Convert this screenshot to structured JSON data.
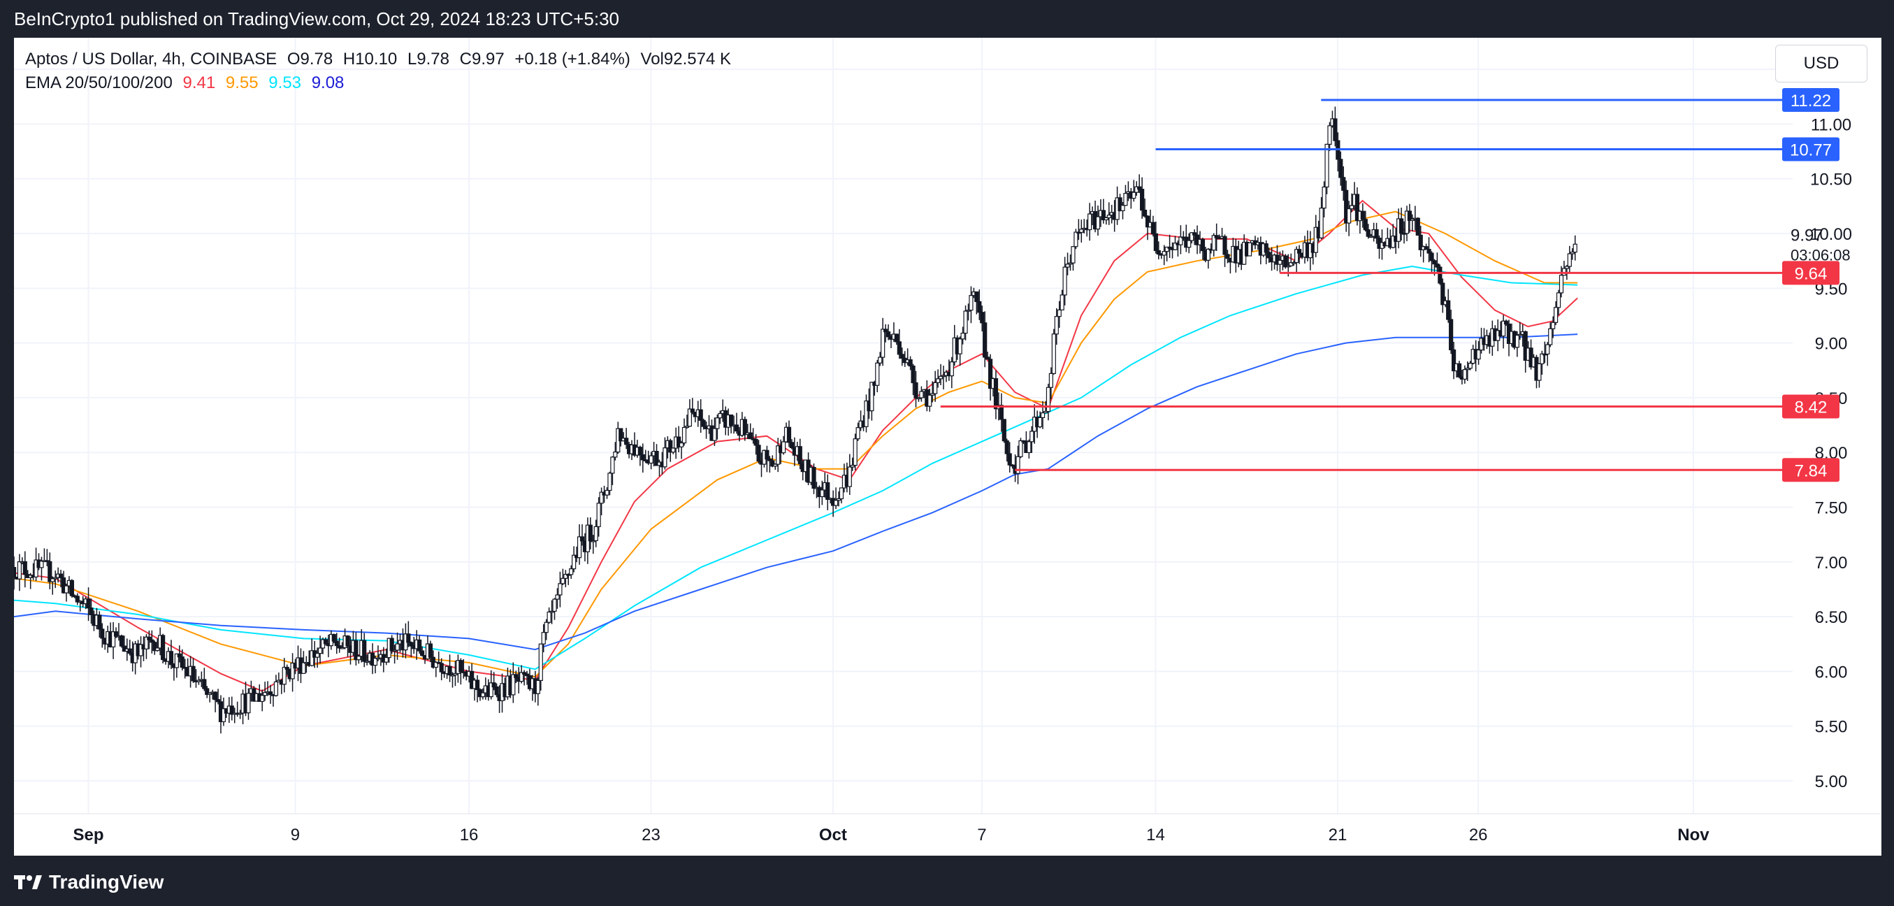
{
  "header": {
    "publisher": "BeInCrypto1 published on TradingView.com, Oct 29, 2024 18:23 UTC+5:30"
  },
  "legend": {
    "symbol": "Aptos / US Dollar, 4h, COINBASE",
    "open": "O9.78",
    "high": "H10.10",
    "low": "L9.78",
    "close": "C9.97",
    "change": "+0.18 (+1.84%)",
    "volume": "Vol92.574 K",
    "ema_label": "EMA 20/50/100/200",
    "ema20": "9.41",
    "ema50": "9.55",
    "ema100": "9.53",
    "ema200": "9.08"
  },
  "toolbar": {
    "currency_label": "USD"
  },
  "footer": {
    "brand": "TradingView"
  },
  "colors": {
    "ema20": "#f23645",
    "ema50": "#ff9800",
    "ema100": "#00e5ff",
    "ema200": "#2962ff",
    "resistance": "#2962ff",
    "support": "#f23645",
    "candle": "#131722"
  },
  "chart_data": {
    "type": "candlestick",
    "title": "Aptos / US Dollar, 4h, COINBASE",
    "x_ticks": [
      {
        "label": "Sep",
        "t": 4,
        "bold": true
      },
      {
        "label": "9",
        "t": 29,
        "bold": false
      },
      {
        "label": "16",
        "t": 50,
        "bold": false
      },
      {
        "label": "23",
        "t": 72,
        "bold": false
      },
      {
        "label": "Oct",
        "t": 94,
        "bold": true
      },
      {
        "label": "7",
        "t": 112,
        "bold": false
      },
      {
        "label": "14",
        "t": 133,
        "bold": false
      },
      {
        "label": "21",
        "t": 155,
        "bold": false
      },
      {
        "label": "26",
        "t": 172,
        "bold": false
      },
      {
        "label": "Nov",
        "t": 198,
        "bold": true
      }
    ],
    "x_range": [
      -5,
      210
    ],
    "y_ticks": [
      5.0,
      5.5,
      6.0,
      6.5,
      7.0,
      7.5,
      8.0,
      8.5,
      9.0,
      9.5,
      10.0,
      10.5,
      11.0,
      11.5
    ],
    "y_tick_labels": [
      "5.00",
      "5.50",
      "6.00",
      "6.50",
      "7.00",
      "7.50",
      "8.00",
      "8.50",
      "9.00",
      "9.50",
      "10.00",
      "10.50",
      "11.00",
      "11.50"
    ],
    "ylim": [
      4.7,
      11.75
    ],
    "price_label": {
      "value": 9.97,
      "text": "9.97",
      "countdown": "03:06:08"
    },
    "levels": [
      {
        "kind": "resistance",
        "value": 11.22,
        "label": "11.22",
        "t_start": 153
      },
      {
        "kind": "resistance",
        "value": 10.77,
        "label": "10.77",
        "t_start": 133
      },
      {
        "kind": "support",
        "value": 9.64,
        "label": "9.64",
        "t_start": 148
      },
      {
        "kind": "support",
        "value": 8.42,
        "label": "8.42",
        "t_start": 107
      },
      {
        "kind": "support",
        "value": 7.84,
        "label": "7.84",
        "t_start": 116
      }
    ],
    "closes": [
      [
        -5,
        6.95
      ],
      [
        0,
        6.9
      ],
      [
        2,
        6.7
      ],
      [
        4,
        6.55
      ],
      [
        6,
        6.35
      ],
      [
        8,
        6.25
      ],
      [
        10,
        6.15
      ],
      [
        12,
        6.3
      ],
      [
        14,
        6.1
      ],
      [
        16,
        6.0
      ],
      [
        18,
        5.8
      ],
      [
        20,
        5.65
      ],
      [
        22,
        5.7
      ],
      [
        24,
        5.75
      ],
      [
        25,
        5.8
      ],
      [
        26,
        5.85
      ],
      [
        28,
        6.0
      ],
      [
        30,
        6.1
      ],
      [
        32,
        6.2
      ],
      [
        34,
        6.25
      ],
      [
        36,
        6.2
      ],
      [
        38,
        6.15
      ],
      [
        40,
        6.2
      ],
      [
        42,
        6.25
      ],
      [
        44,
        6.2
      ],
      [
        46,
        6.1
      ],
      [
        48,
        6.05
      ],
      [
        50,
        5.9
      ],
      [
        52,
        5.8
      ],
      [
        54,
        5.85
      ],
      [
        56,
        5.9
      ],
      [
        58,
        5.85
      ],
      [
        59,
        6.3
      ],
      [
        61,
        6.7
      ],
      [
        63,
        7.1
      ],
      [
        65,
        7.3
      ],
      [
        67,
        7.8
      ],
      [
        68,
        8.2
      ],
      [
        69,
        8.1
      ],
      [
        71,
        8.0
      ],
      [
        73,
        7.95
      ],
      [
        75,
        8.1
      ],
      [
        77,
        8.35
      ],
      [
        79,
        8.2
      ],
      [
        81,
        8.3
      ],
      [
        83,
        8.2
      ],
      [
        85,
        7.95
      ],
      [
        87,
        7.9
      ],
      [
        88,
        8.2
      ],
      [
        90,
        7.9
      ],
      [
        92,
        7.7
      ],
      [
        94,
        7.6
      ],
      [
        96,
        7.8
      ],
      [
        97,
        8.2
      ],
      [
        99,
        8.6
      ],
      [
        100,
        9.1
      ],
      [
        102,
        9.0
      ],
      [
        104,
        8.6
      ],
      [
        106,
        8.5
      ],
      [
        108,
        8.8
      ],
      [
        110,
        9.2
      ],
      [
        111,
        9.4
      ],
      [
        112,
        9.1
      ],
      [
        113,
        8.7
      ],
      [
        115,
        8.0
      ],
      [
        116,
        7.9
      ],
      [
        118,
        8.2
      ],
      [
        120,
        8.5
      ],
      [
        121,
        9.2
      ],
      [
        122,
        9.6
      ],
      [
        123,
        9.9
      ],
      [
        125,
        10.1
      ],
      [
        127,
        10.2
      ],
      [
        129,
        10.25
      ],
      [
        131,
        10.4
      ],
      [
        132,
        10.1
      ],
      [
        133,
        9.9
      ],
      [
        135,
        9.9
      ],
      [
        137,
        9.95
      ],
      [
        139,
        9.85
      ],
      [
        141,
        9.9
      ],
      [
        143,
        9.8
      ],
      [
        145,
        9.85
      ],
      [
        147,
        9.8
      ],
      [
        148,
        9.7
      ],
      [
        150,
        9.8
      ],
      [
        152,
        9.9
      ],
      [
        153,
        10.1
      ],
      [
        154,
        11.1
      ],
      [
        155,
        10.8
      ],
      [
        156,
        10.2
      ],
      [
        157,
        10.3
      ],
      [
        158,
        10.1
      ],
      [
        160,
        9.85
      ],
      [
        162,
        10.0
      ],
      [
        164,
        10.2
      ],
      [
        165,
        9.9
      ],
      [
        167,
        9.7
      ],
      [
        168,
        9.3
      ],
      [
        169,
        8.8
      ],
      [
        170,
        8.6
      ],
      [
        171,
        8.9
      ],
      [
        173,
        9.0
      ],
      [
        175,
        9.1
      ],
      [
        177,
        9.05
      ],
      [
        178,
        8.9
      ],
      [
        179,
        8.75
      ],
      [
        180,
        8.9
      ],
      [
        181,
        9.2
      ],
      [
        182,
        9.6
      ],
      [
        183,
        9.8
      ],
      [
        184,
        9.97
      ]
    ],
    "ema_series": [
      {
        "key": "ema20",
        "points": [
          [
            -5,
            6.9
          ],
          [
            0,
            6.85
          ],
          [
            10,
            6.4
          ],
          [
            20,
            5.98
          ],
          [
            25,
            5.82
          ],
          [
            30,
            6.05
          ],
          [
            40,
            6.2
          ],
          [
            50,
            6.0
          ],
          [
            58,
            5.92
          ],
          [
            62,
            6.4
          ],
          [
            66,
            7.0
          ],
          [
            70,
            7.55
          ],
          [
            74,
            7.85
          ],
          [
            80,
            8.1
          ],
          [
            86,
            8.15
          ],
          [
            92,
            7.85
          ],
          [
            96,
            7.75
          ],
          [
            100,
            8.2
          ],
          [
            104,
            8.5
          ],
          [
            108,
            8.75
          ],
          [
            112,
            8.9
          ],
          [
            116,
            8.55
          ],
          [
            120,
            8.4
          ],
          [
            124,
            9.25
          ],
          [
            128,
            9.75
          ],
          [
            132,
            10.0
          ],
          [
            138,
            9.95
          ],
          [
            144,
            9.95
          ],
          [
            150,
            9.75
          ],
          [
            154,
            10.0
          ],
          [
            158,
            10.3
          ],
          [
            162,
            10.05
          ],
          [
            166,
            10.0
          ],
          [
            170,
            9.6
          ],
          [
            174,
            9.3
          ],
          [
            178,
            9.15
          ],
          [
            181,
            9.2
          ],
          [
            184,
            9.41
          ]
        ]
      },
      {
        "key": "ema50",
        "points": [
          [
            -5,
            6.85
          ],
          [
            0,
            6.8
          ],
          [
            10,
            6.55
          ],
          [
            20,
            6.25
          ],
          [
            30,
            6.05
          ],
          [
            40,
            6.15
          ],
          [
            50,
            6.08
          ],
          [
            58,
            5.95
          ],
          [
            62,
            6.25
          ],
          [
            66,
            6.75
          ],
          [
            72,
            7.3
          ],
          [
            80,
            7.75
          ],
          [
            86,
            7.95
          ],
          [
            92,
            7.85
          ],
          [
            96,
            7.85
          ],
          [
            100,
            8.15
          ],
          [
            104,
            8.4
          ],
          [
            108,
            8.55
          ],
          [
            112,
            8.65
          ],
          [
            116,
            8.5
          ],
          [
            120,
            8.45
          ],
          [
            124,
            9.0
          ],
          [
            128,
            9.4
          ],
          [
            132,
            9.65
          ],
          [
            138,
            9.75
          ],
          [
            146,
            9.85
          ],
          [
            152,
            9.95
          ],
          [
            156,
            10.1
          ],
          [
            162,
            10.2
          ],
          [
            168,
            10.0
          ],
          [
            174,
            9.75
          ],
          [
            180,
            9.55
          ],
          [
            184,
            9.55
          ]
        ]
      },
      {
        "key": "ema100",
        "points": [
          [
            -5,
            6.65
          ],
          [
            0,
            6.62
          ],
          [
            10,
            6.52
          ],
          [
            20,
            6.38
          ],
          [
            30,
            6.3
          ],
          [
            40,
            6.28
          ],
          [
            50,
            6.15
          ],
          [
            58,
            6.02
          ],
          [
            64,
            6.3
          ],
          [
            70,
            6.6
          ],
          [
            78,
            6.95
          ],
          [
            86,
            7.2
          ],
          [
            94,
            7.45
          ],
          [
            100,
            7.65
          ],
          [
            106,
            7.9
          ],
          [
            112,
            8.1
          ],
          [
            118,
            8.3
          ],
          [
            124,
            8.5
          ],
          [
            130,
            8.8
          ],
          [
            136,
            9.05
          ],
          [
            142,
            9.25
          ],
          [
            150,
            9.45
          ],
          [
            158,
            9.62
          ],
          [
            164,
            9.7
          ],
          [
            170,
            9.62
          ],
          [
            176,
            9.55
          ],
          [
            184,
            9.53
          ]
        ]
      },
      {
        "key": "ema200",
        "points": [
          [
            -5,
            6.5
          ],
          [
            0,
            6.55
          ],
          [
            10,
            6.48
          ],
          [
            20,
            6.42
          ],
          [
            30,
            6.38
          ],
          [
            40,
            6.35
          ],
          [
            50,
            6.3
          ],
          [
            58,
            6.2
          ],
          [
            64,
            6.35
          ],
          [
            70,
            6.55
          ],
          [
            78,
            6.75
          ],
          [
            86,
            6.95
          ],
          [
            94,
            7.1
          ],
          [
            100,
            7.28
          ],
          [
            106,
            7.45
          ],
          [
            112,
            7.65
          ],
          [
            116,
            7.8
          ],
          [
            120,
            7.85
          ],
          [
            126,
            8.15
          ],
          [
            132,
            8.4
          ],
          [
            138,
            8.6
          ],
          [
            144,
            8.75
          ],
          [
            150,
            8.9
          ],
          [
            156,
            9.0
          ],
          [
            162,
            9.05
          ],
          [
            168,
            9.05
          ],
          [
            176,
            9.05
          ],
          [
            184,
            9.08
          ]
        ]
      }
    ]
  }
}
